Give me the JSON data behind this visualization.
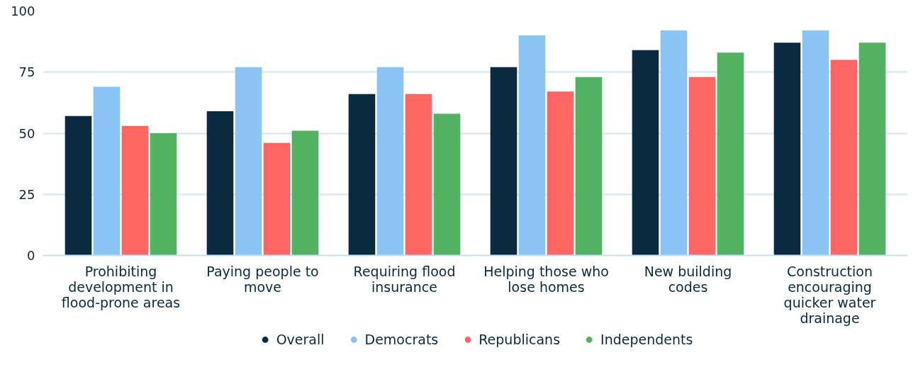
{
  "chart_data": {
    "type": "bar",
    "categories": [
      "Prohibiting development in flood-prone areas",
      "Paying people to move",
      "Requiring flood insurance",
      "Helping those who lose homes",
      "New building codes",
      "Construction encouraging quicker water drainage"
    ],
    "series": [
      {
        "name": "Overall",
        "color": "#0a2a3f",
        "values": [
          57,
          59,
          66,
          77,
          84,
          87
        ]
      },
      {
        "name": "Democrats",
        "color": "#8ac4f5",
        "values": [
          69,
          77,
          77,
          90,
          92,
          92
        ]
      },
      {
        "name": "Republicans",
        "color": "#ff6663",
        "values": [
          53,
          46,
          66,
          67,
          73,
          80
        ]
      },
      {
        "name": "Independents",
        "color": "#52b262",
        "values": [
          50,
          51,
          58,
          73,
          83,
          87
        ]
      }
    ],
    "ylim": [
      0,
      100
    ],
    "yticks": [
      0,
      25,
      50,
      75,
      100
    ],
    "grid": "y",
    "legend": "bottom"
  }
}
